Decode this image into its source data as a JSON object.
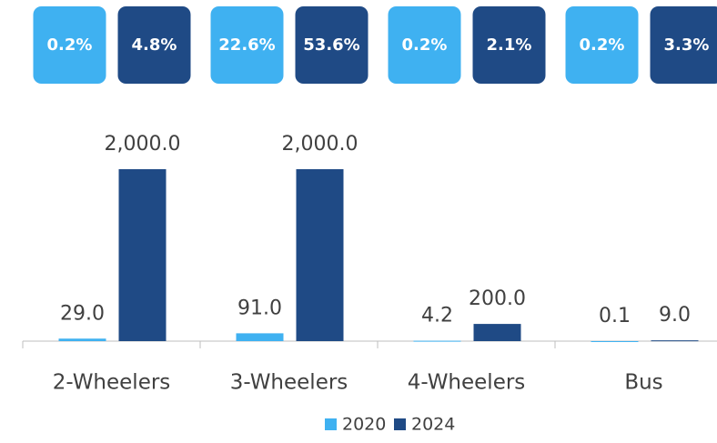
{
  "chart_data": {
    "type": "bar",
    "categories": [
      "2-Wheelers",
      "3-Wheelers",
      "4-Wheelers",
      "Bus"
    ],
    "series": [
      {
        "name": "2020",
        "color": "#3fb1f1",
        "values": [
          29,
          91,
          4.2,
          0.1
        ],
        "value_labels": [
          "29.0",
          "91.0",
          "4.2",
          "0.1"
        ],
        "shares": [
          0.2,
          22.6,
          0.2,
          0.2
        ],
        "share_labels": [
          "0.2%",
          "22.6%",
          "0.2%",
          "0.2%"
        ]
      },
      {
        "name": "2024",
        "color": "#1f4a85",
        "values": [
          2000,
          2000,
          200,
          9
        ],
        "value_labels": [
          "2,000.0",
          "2,000.0",
          "200.0",
          "9.0"
        ],
        "shares": [
          4.8,
          53.6,
          2.1,
          3.3
        ],
        "share_labels": [
          "4.8%",
          "53.6%",
          "2.1%",
          "3.3%"
        ]
      }
    ],
    "ylim": [
      0,
      2000
    ],
    "legend": "bottom"
  }
}
